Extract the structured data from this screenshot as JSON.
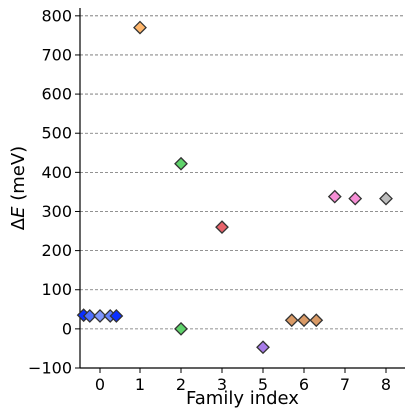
{
  "chart_data": {
    "type": "scatter",
    "title": "",
    "xlabel": "Family index",
    "ylabel_prefix": "Δ",
    "ylabel_var": "E",
    "ylabel_suffix": " (meV)",
    "ylim": [
      -100,
      820
    ],
    "yticks": [
      -100,
      0,
      100,
      200,
      300,
      400,
      500,
      600,
      700,
      800
    ],
    "ytick_labels": [
      "−100",
      "0",
      "100",
      "200",
      "300",
      "400",
      "500",
      "600",
      "700",
      "800"
    ],
    "categories": [
      "0",
      "1",
      "2",
      "3",
      "5",
      "6",
      "7",
      "8"
    ],
    "grid": "horizontal dashed",
    "marker": "diamond",
    "points": [
      {
        "category": "0",
        "offset": -0.4,
        "y": 35,
        "color": "#0a2fff"
      },
      {
        "category": "0",
        "offset": -0.25,
        "y": 33,
        "color": "#4d6fff"
      },
      {
        "category": "0",
        "offset": 0,
        "y": 33,
        "color": "#7f97ff"
      },
      {
        "category": "0",
        "offset": 0.25,
        "y": 33,
        "color": "#6683ff"
      },
      {
        "category": "0",
        "offset": 0.4,
        "y": 33,
        "color": "#0a2fff"
      },
      {
        "category": "1",
        "offset": 0,
        "y": 770,
        "color": "#ffb66b"
      },
      {
        "category": "2",
        "offset": 0,
        "y": 422,
        "color": "#5fd36b"
      },
      {
        "category": "2",
        "offset": 0,
        "y": 0,
        "color": "#5fd36b"
      },
      {
        "category": "3",
        "offset": 0,
        "y": 260,
        "color": "#e8636b"
      },
      {
        "category": "5",
        "offset": 0,
        "y": -47,
        "color": "#a77be8"
      },
      {
        "category": "6",
        "offset": -0.3,
        "y": 22,
        "color": "#d99a66"
      },
      {
        "category": "6",
        "offset": 0,
        "y": 22,
        "color": "#d99a66"
      },
      {
        "category": "6",
        "offset": 0.3,
        "y": 22,
        "color": "#d99a66"
      },
      {
        "category": "7",
        "offset": -0.25,
        "y": 338,
        "color": "#f78fd6"
      },
      {
        "category": "7",
        "offset": 0.25,
        "y": 333,
        "color": "#f78fd6"
      },
      {
        "category": "8",
        "offset": 0,
        "y": 333,
        "color": "#bdbdbd"
      }
    ]
  }
}
